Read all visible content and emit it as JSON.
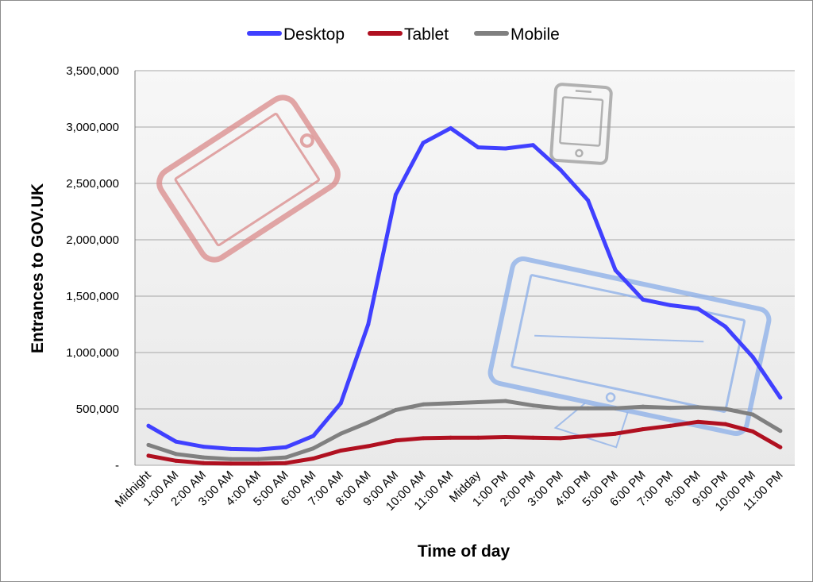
{
  "chart_data": {
    "type": "line",
    "title": "",
    "xlabel": "Time of day",
    "ylabel": "Entrances to GOV.UK",
    "categories": [
      "Midnight",
      "1:00 AM",
      "2:00 AM",
      "3:00 AM",
      "4:00 AM",
      "5:00 AM",
      "6:00 AM",
      "7:00 AM",
      "8:00 AM",
      "9:00 AM",
      "10:00 AM",
      "11:00 AM",
      "Midday",
      "1:00 PM",
      "2:00 PM",
      "3:00 PM",
      "4:00 PM",
      "5:00 PM",
      "6:00 PM",
      "7:00 PM",
      "8:00 PM",
      "9:00 PM",
      "10:00 PM",
      "11:00 PM"
    ],
    "ylim": [
      0,
      3500000
    ],
    "yticks": [
      0,
      500000,
      1000000,
      1500000,
      2000000,
      2500000,
      3000000,
      3500000
    ],
    "ytick_labels": [
      "-",
      "500,000",
      "1,000,000",
      "1,500,000",
      "2,000,000",
      "2,500,000",
      "3,000,000",
      "3,500,000"
    ],
    "grid": true,
    "legend_position": "top",
    "series": [
      {
        "name": "Desktop",
        "color": "#4040ff",
        "values": [
          350000,
          210000,
          165000,
          145000,
          140000,
          160000,
          260000,
          550000,
          1250000,
          2400000,
          2860000,
          2990000,
          2820000,
          2810000,
          2840000,
          2620000,
          2350000,
          1730000,
          1470000,
          1420000,
          1390000,
          1230000,
          960000,
          600000
        ]
      },
      {
        "name": "Tablet",
        "color": "#b01020",
        "values": [
          85000,
          40000,
          20000,
          15000,
          15000,
          20000,
          60000,
          130000,
          170000,
          220000,
          240000,
          245000,
          245000,
          250000,
          245000,
          240000,
          260000,
          280000,
          320000,
          350000,
          385000,
          365000,
          300000,
          160000
        ]
      },
      {
        "name": "Mobile",
        "color": "#808080",
        "values": [
          180000,
          100000,
          70000,
          55000,
          55000,
          70000,
          150000,
          280000,
          380000,
          490000,
          540000,
          550000,
          560000,
          570000,
          530000,
          505000,
          505000,
          505000,
          520000,
          510000,
          515000,
          500000,
          450000,
          305000
        ]
      }
    ]
  },
  "decorations": {
    "tablet_icon_color": "#d98a8a",
    "phone_icon_color": "#9a9a9a",
    "desktop_icon_color": "#8aaee8",
    "plot_background": "#f2f2f2",
    "gridline_color": "#a6a6a6"
  }
}
